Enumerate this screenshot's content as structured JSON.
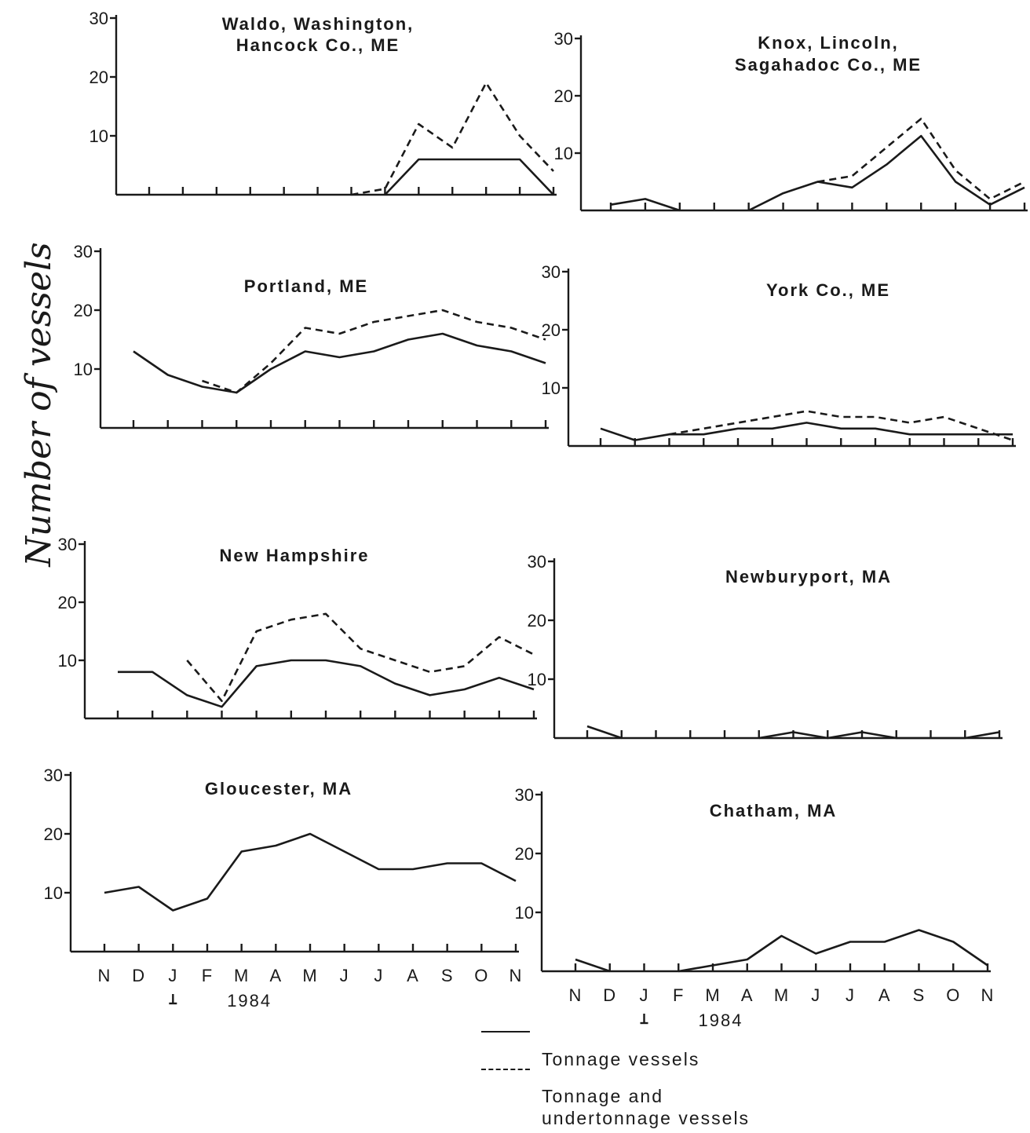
{
  "ylabel": "Number of vessels",
  "months": [
    "N",
    "D",
    "J",
    "F",
    "M",
    "A",
    "M",
    "J",
    "J",
    "A",
    "S",
    "O",
    "N"
  ],
  "year_label": "1984",
  "legend": {
    "tonnage": "Tonnage vessels",
    "both_line1": "Tonnage and",
    "both_line2": "undertonnage vessels"
  },
  "chart_data": [
    {
      "type": "line",
      "title": [
        "Waldo, Washington,",
        "Hancock Co., ME"
      ],
      "categories": [
        "N",
        "D",
        "J",
        "F",
        "M",
        "A",
        "M",
        "J",
        "J",
        "A",
        "S",
        "O",
        "N"
      ],
      "yticks": [
        10,
        20,
        30
      ],
      "ylim": [
        0,
        30
      ],
      "series": [
        {
          "name": "Tonnage vessels",
          "style": "solid",
          "values": [
            null,
            null,
            null,
            null,
            null,
            null,
            null,
            0,
            6,
            6,
            6,
            6,
            0
          ]
        },
        {
          "name": "Tonnage and undertonnage vessels",
          "style": "dashed",
          "values": [
            null,
            null,
            null,
            null,
            null,
            null,
            0,
            1,
            12,
            8,
            19,
            10,
            4
          ]
        }
      ]
    },
    {
      "type": "line",
      "title": [
        "Knox, Lincoln,",
        "Sagahadoc Co., ME"
      ],
      "categories": [
        "N",
        "D",
        "J",
        "F",
        "M",
        "A",
        "M",
        "J",
        "J",
        "A",
        "S",
        "O",
        "N"
      ],
      "yticks": [
        10,
        20,
        30
      ],
      "ylim": [
        0,
        30
      ],
      "series": [
        {
          "name": "Tonnage vessels",
          "style": "solid",
          "values": [
            1,
            2,
            0,
            null,
            0,
            3,
            5,
            4,
            8,
            13,
            5,
            1,
            4
          ]
        },
        {
          "name": "Tonnage and undertonnage vessels",
          "style": "dashed",
          "values": [
            null,
            null,
            null,
            null,
            null,
            null,
            5,
            6,
            11,
            16,
            7,
            2,
            5
          ]
        }
      ]
    },
    {
      "type": "line",
      "title": [
        "Portland, ME"
      ],
      "categories": [
        "N",
        "D",
        "J",
        "F",
        "M",
        "A",
        "M",
        "J",
        "J",
        "A",
        "S",
        "O",
        "N"
      ],
      "yticks": [
        10,
        20,
        30
      ],
      "ylim": [
        0,
        30
      ],
      "series": [
        {
          "name": "Tonnage vessels",
          "style": "solid",
          "values": [
            13,
            9,
            7,
            6,
            10,
            13,
            12,
            13,
            15,
            16,
            14,
            13,
            11
          ]
        },
        {
          "name": "Tonnage and undertonnage vessels",
          "style": "dashed",
          "values": [
            null,
            null,
            8,
            6,
            11,
            17,
            16,
            18,
            19,
            20,
            18,
            17,
            15
          ]
        }
      ]
    },
    {
      "type": "line",
      "title": [
        "York Co., ME"
      ],
      "categories": [
        "N",
        "D",
        "J",
        "F",
        "M",
        "A",
        "M",
        "J",
        "J",
        "A",
        "S",
        "O",
        "N"
      ],
      "yticks": [
        10,
        20,
        30
      ],
      "ylim": [
        0,
        30
      ],
      "series": [
        {
          "name": "Tonnage vessels",
          "style": "solid",
          "values": [
            3,
            1,
            2,
            2,
            3,
            3,
            4,
            3,
            3,
            2,
            2,
            2,
            2
          ]
        },
        {
          "name": "Tonnage and undertonnage vessels",
          "style": "dashed",
          "values": [
            null,
            null,
            2,
            3,
            4,
            5,
            6,
            5,
            5,
            4,
            5,
            3,
            1
          ]
        }
      ]
    },
    {
      "type": "line",
      "title": [
        "New Hampshire"
      ],
      "categories": [
        "N",
        "D",
        "J",
        "F",
        "M",
        "A",
        "M",
        "J",
        "J",
        "A",
        "S",
        "O",
        "N"
      ],
      "yticks": [
        10,
        20,
        30
      ],
      "ylim": [
        0,
        30
      ],
      "series": [
        {
          "name": "Tonnage vessels",
          "style": "solid",
          "values": [
            8,
            8,
            4,
            2,
            9,
            10,
            10,
            9,
            6,
            4,
            5,
            7,
            5
          ]
        },
        {
          "name": "Tonnage and undertonnage vessels",
          "style": "dashed",
          "values": [
            null,
            null,
            10,
            3,
            15,
            17,
            18,
            12,
            10,
            8,
            9,
            14,
            11
          ]
        }
      ]
    },
    {
      "type": "line",
      "title": [
        "Newburyport, MA"
      ],
      "categories": [
        "N",
        "D",
        "J",
        "F",
        "M",
        "A",
        "M",
        "J",
        "J",
        "A",
        "S",
        "O",
        "N"
      ],
      "yticks": [
        10,
        20,
        30
      ],
      "ylim": [
        0,
        30
      ],
      "series": [
        {
          "name": "Tonnage vessels",
          "style": "solid",
          "values": [
            2,
            0,
            null,
            null,
            null,
            0,
            1,
            0,
            1,
            0,
            0,
            0,
            1
          ]
        }
      ]
    },
    {
      "type": "line",
      "title": [
        "Gloucester, MA"
      ],
      "categories": [
        "N",
        "D",
        "J",
        "F",
        "M",
        "A",
        "M",
        "J",
        "J",
        "A",
        "S",
        "O",
        "N"
      ],
      "yticks": [
        10,
        20,
        30
      ],
      "ylim": [
        0,
        30
      ],
      "series": [
        {
          "name": "Tonnage vessels",
          "style": "solid",
          "values": [
            10,
            11,
            7,
            9,
            17,
            18,
            20,
            17,
            14,
            14,
            15,
            15,
            12
          ]
        }
      ]
    },
    {
      "type": "line",
      "title": [
        "Chatham, MA"
      ],
      "categories": [
        "N",
        "D",
        "J",
        "F",
        "M",
        "A",
        "M",
        "J",
        "J",
        "A",
        "S",
        "O",
        "N"
      ],
      "yticks": [
        10,
        20,
        30
      ],
      "ylim": [
        0,
        30
      ],
      "series": [
        {
          "name": "Tonnage vessels",
          "style": "solid",
          "values": [
            2,
            0,
            null,
            0,
            1,
            2,
            6,
            3,
            5,
            5,
            7,
            5,
            1
          ]
        }
      ]
    }
  ]
}
